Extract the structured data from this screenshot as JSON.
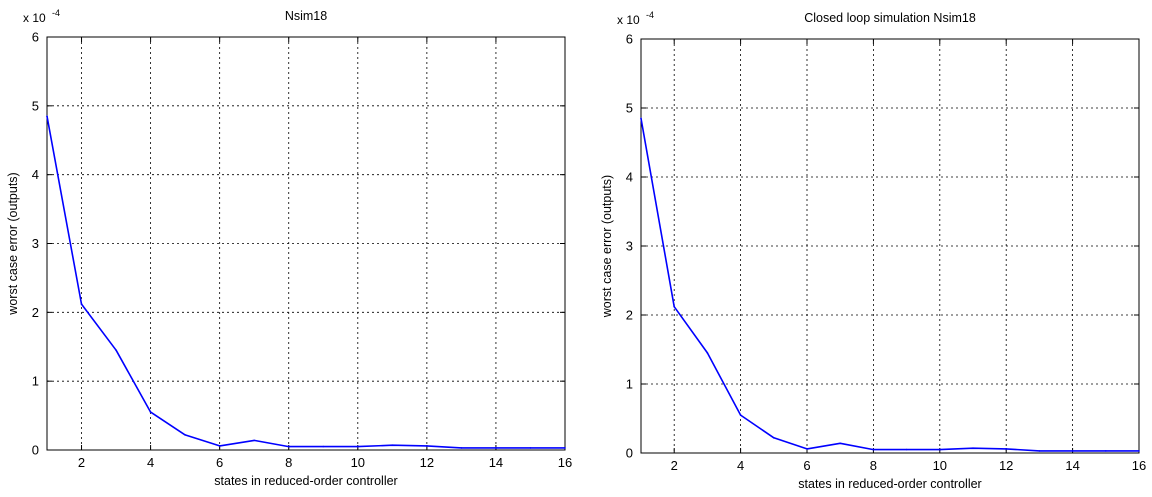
{
  "chart_data": [
    {
      "type": "line",
      "title": "Nsim18",
      "xlabel": "states in reduced-order controller",
      "ylabel": "worst case error (outputs)",
      "y_exponent_label": "x 10",
      "y_exponent_power": "-4",
      "xlim": [
        1,
        16
      ],
      "ylim": [
        0,
        6
      ],
      "xticks": [
        "2",
        "4",
        "6",
        "8",
        "10",
        "12",
        "14",
        "16"
      ],
      "yticks": [
        "0",
        "1",
        "2",
        "3",
        "4",
        "5",
        "6"
      ],
      "grid": true,
      "line_color": "#0000ff",
      "x": [
        1,
        2,
        3,
        4,
        5,
        6,
        7,
        8,
        9,
        10,
        11,
        12,
        13,
        14,
        15,
        16
      ],
      "y": [
        4.85,
        2.12,
        1.45,
        0.55,
        0.22,
        0.06,
        0.14,
        0.05,
        0.05,
        0.05,
        0.07,
        0.06,
        0.03,
        0.03,
        0.03,
        0.03
      ]
    },
    {
      "type": "line",
      "title": "Closed loop simulation Nsim18",
      "xlabel": "states in reduced-order controller",
      "ylabel": "worst case error (outputs)",
      "y_exponent_label": "x 10",
      "y_exponent_power": "-4",
      "xlim": [
        1,
        16
      ],
      "ylim": [
        0,
        6
      ],
      "xticks": [
        "2",
        "4",
        "6",
        "8",
        "10",
        "12",
        "14",
        "16"
      ],
      "yticks": [
        "0",
        "1",
        "2",
        "3",
        "4",
        "5",
        "6"
      ],
      "grid": true,
      "line_color": "#0000ff",
      "x": [
        1,
        2,
        3,
        4,
        5,
        6,
        7,
        8,
        9,
        10,
        11,
        12,
        13,
        14,
        15,
        16
      ],
      "y": [
        4.85,
        2.12,
        1.45,
        0.55,
        0.22,
        0.06,
        0.14,
        0.05,
        0.05,
        0.05,
        0.07,
        0.06,
        0.03,
        0.03,
        0.03,
        0.03
      ]
    }
  ]
}
